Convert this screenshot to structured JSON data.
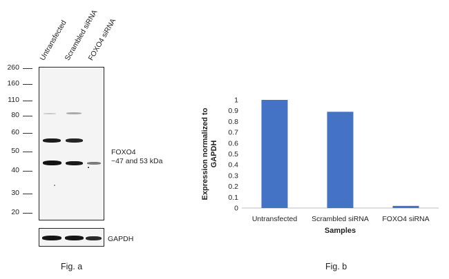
{
  "fig_a": {
    "caption": "Fig. a",
    "lanes": [
      "Untransfected",
      "Scrambled siRNA",
      "FOXO4 siRNA"
    ],
    "markers": [
      "260",
      "160",
      "110",
      "80",
      "60",
      "50",
      "40",
      "30",
      "20"
    ],
    "target_label_line1": "FOXO4",
    "target_label_line2": "~47 and 53 kDa",
    "loading_control": "GAPDH"
  },
  "fig_b": {
    "caption": "Fig. b"
  },
  "chart_data": {
    "type": "bar",
    "categories": [
      "Untransfected",
      "Scrambled siRNA",
      "FOXO4 siRNA"
    ],
    "values": [
      1.0,
      0.89,
      0.02
    ],
    "xlabel": "Samples",
    "ylabel": "Expression normalized to GAPDH",
    "ylim": [
      0,
      1
    ],
    "yticks": [
      "0",
      "0.1",
      "0.2",
      "0.3",
      "0.4",
      "0.5",
      "0.6",
      "0.7",
      "0.8",
      "0.9",
      "1"
    ],
    "grid": false,
    "bar_color": "#4472c4"
  }
}
